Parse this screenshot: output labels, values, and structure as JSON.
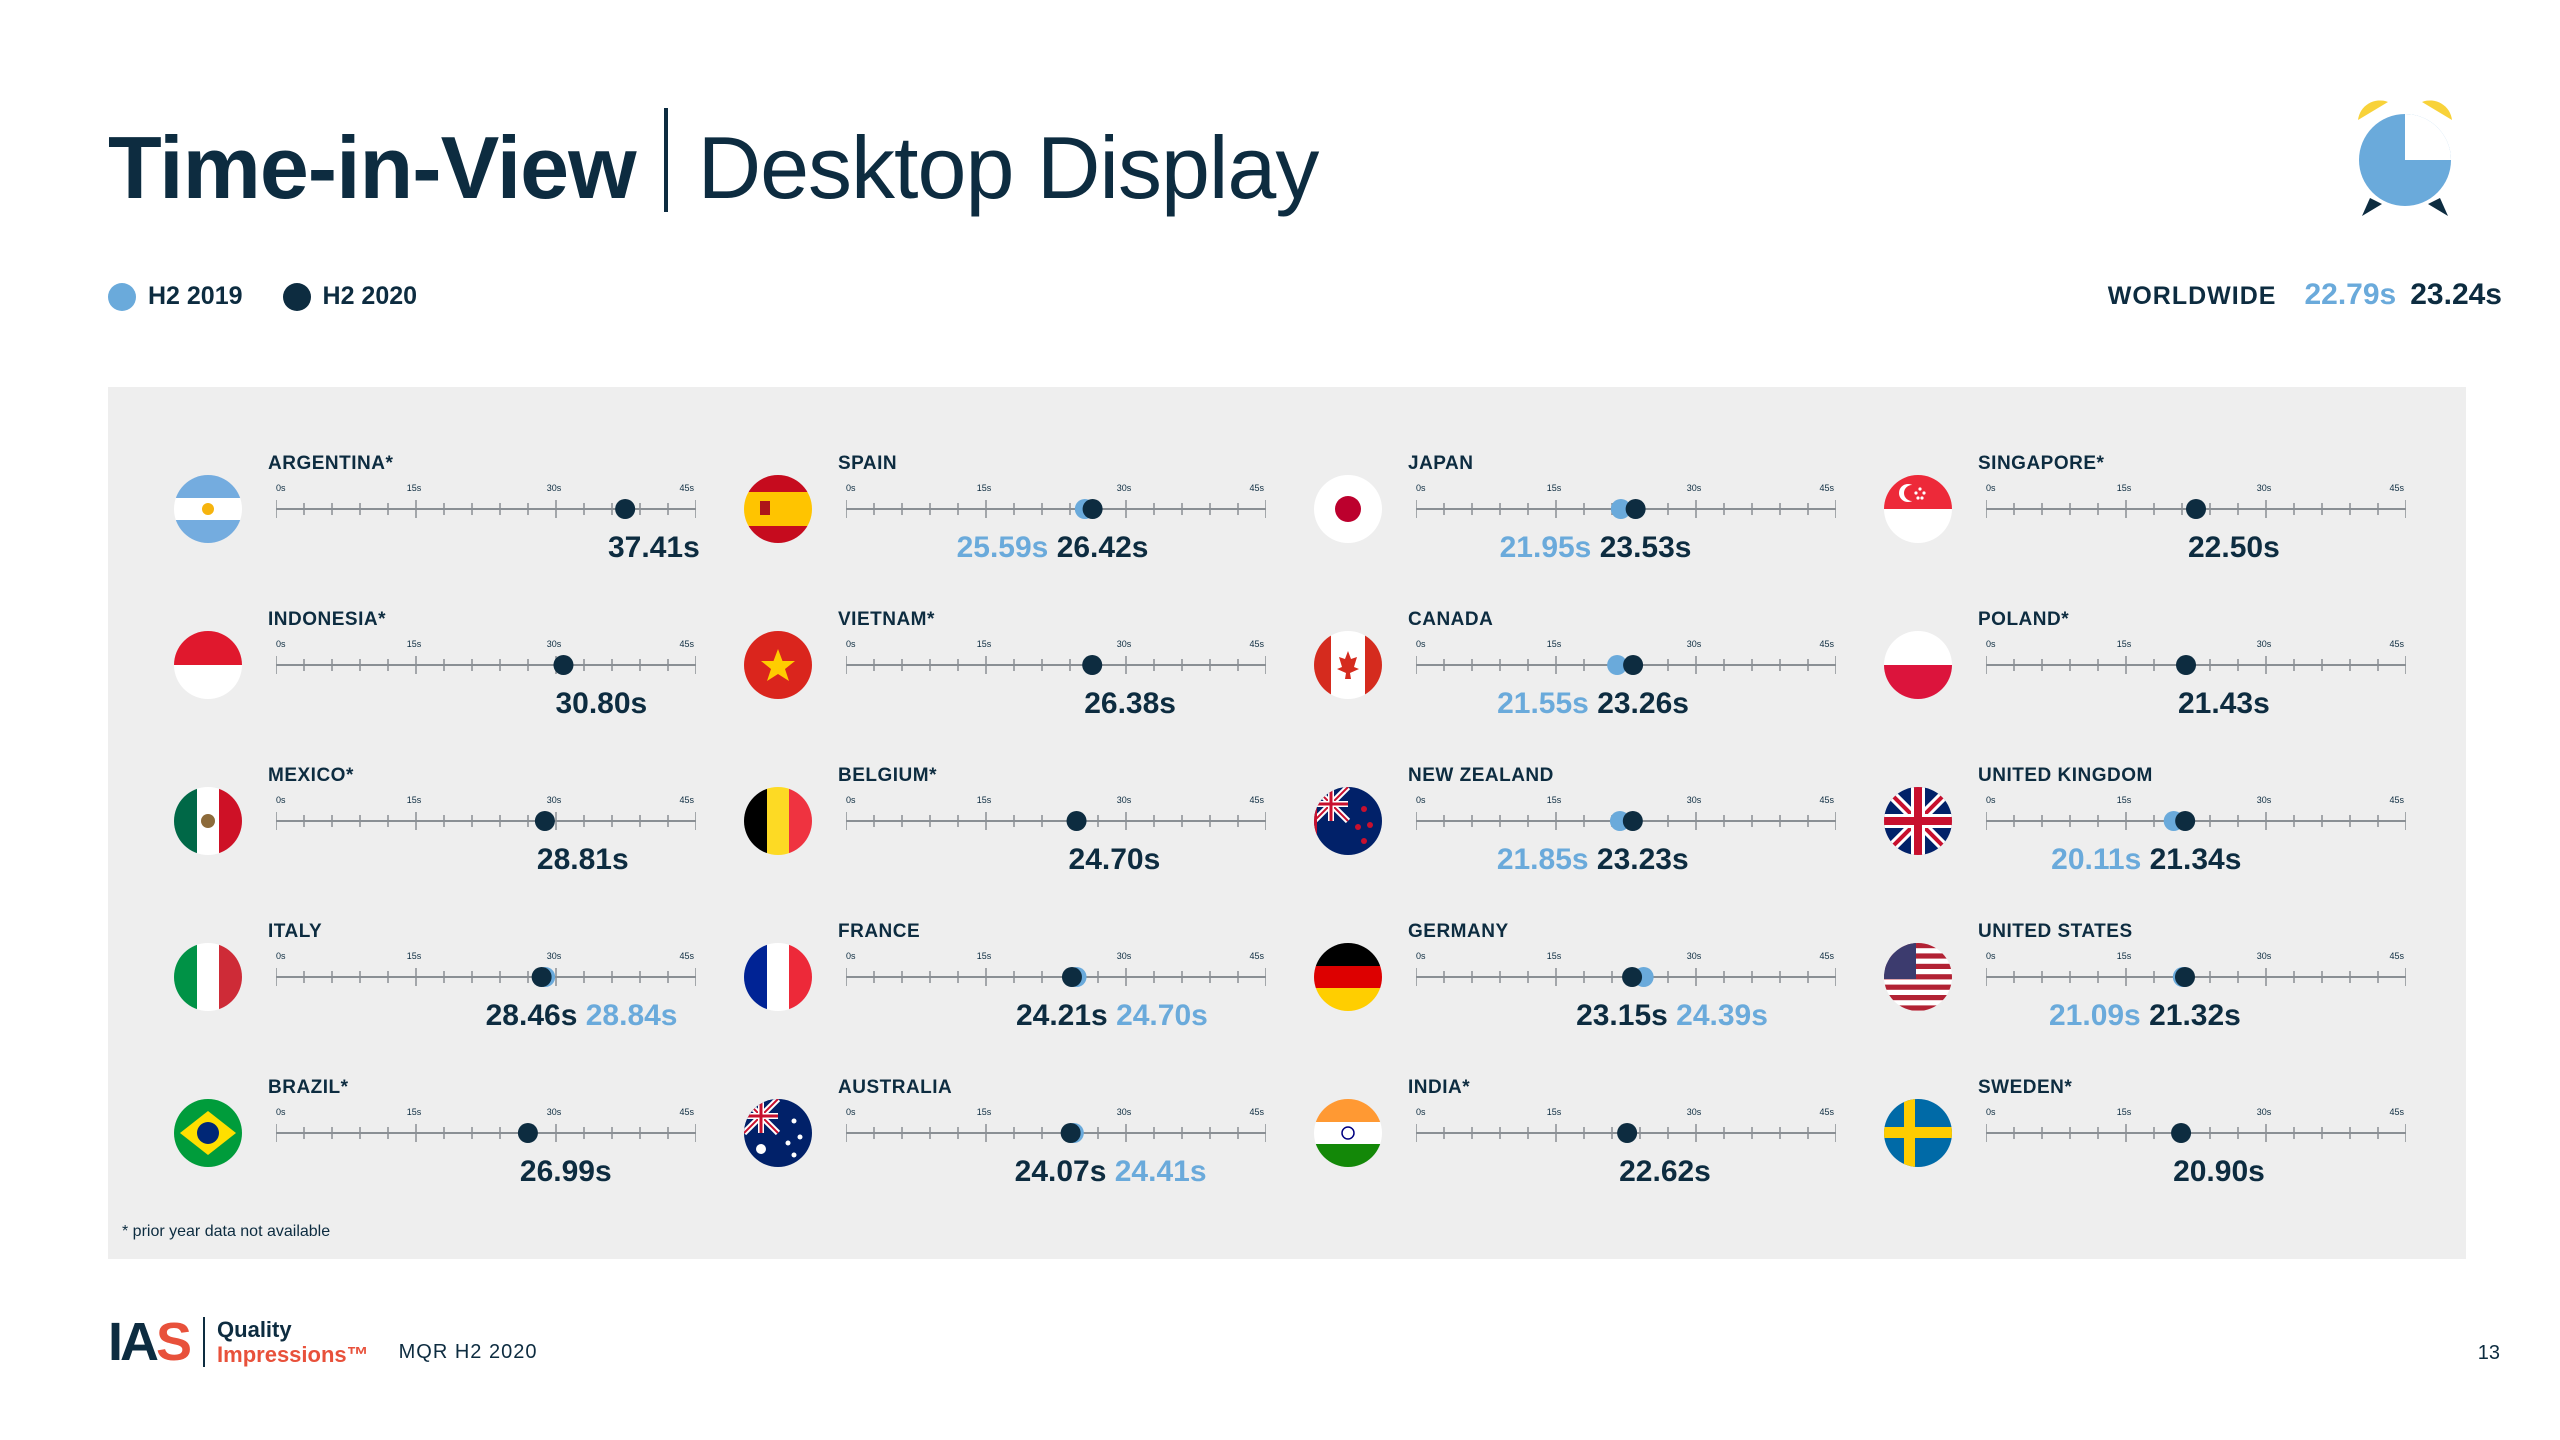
{
  "title": {
    "bold": "Time-in-View",
    "light": "Desktop Display"
  },
  "legend": [
    {
      "label": "H2 2019",
      "color": "#6aaadb"
    },
    {
      "label": "H2 2020",
      "color": "#0d2c40"
    }
  ],
  "worldwide": {
    "label": "WORLDWIDE",
    "h2_2019": "22.79s",
    "h2_2020": "23.24s"
  },
  "footnote": "* prior year data not available",
  "footer": {
    "logo": "IAS",
    "quality": "Quality",
    "impressions": "Impressions™",
    "report": "MQR H2 2020",
    "page": "13"
  },
  "colors": {
    "h2_2019": "#6aaadb",
    "h2_2020": "#0d2c40",
    "panel": "#eeeeee",
    "accent_red": "#e8513b",
    "clock_yellow": "#f8d23a"
  },
  "icons": [
    "alarm-clock-icon"
  ],
  "chart_data": {
    "type": "scatter",
    "title": "Time-in-View | Desktop Display",
    "unit": "s",
    "x_ticks": [
      "0s",
      "15s",
      "30s",
      "45s"
    ],
    "xlim": [
      0,
      45
    ],
    "series_names": [
      "H2 2019",
      "H2 2020"
    ],
    "countries": [
      {
        "name": "ARGENTINA*",
        "flag": "argentina",
        "h2_2019": null,
        "h2_2020": 37.41,
        "label_2019": "",
        "label_2020": "37.41s",
        "order": "19-20"
      },
      {
        "name": "INDONESIA*",
        "flag": "indonesia",
        "h2_2019": null,
        "h2_2020": 30.8,
        "label_2019": "",
        "label_2020": "30.80s",
        "order": "19-20"
      },
      {
        "name": "MEXICO*",
        "flag": "mexico",
        "h2_2019": null,
        "h2_2020": 28.81,
        "label_2019": "",
        "label_2020": "28.81s",
        "order": "19-20"
      },
      {
        "name": "ITALY",
        "flag": "italy",
        "h2_2019": 28.84,
        "h2_2020": 28.46,
        "label_2019": "28.84s",
        "label_2020": "28.46s",
        "order": "20-19"
      },
      {
        "name": "BRAZIL*",
        "flag": "brazil",
        "h2_2019": null,
        "h2_2020": 26.99,
        "label_2019": "",
        "label_2020": "26.99s",
        "order": "19-20"
      },
      {
        "name": "SPAIN",
        "flag": "spain",
        "h2_2019": 25.59,
        "h2_2020": 26.42,
        "label_2019": "25.59s",
        "label_2020": "26.42s",
        "order": "19-20"
      },
      {
        "name": "VIETNAM*",
        "flag": "vietnam",
        "h2_2019": null,
        "h2_2020": 26.38,
        "label_2019": "",
        "label_2020": "26.38s",
        "order": "19-20"
      },
      {
        "name": "BELGIUM*",
        "flag": "belgium",
        "h2_2019": null,
        "h2_2020": 24.7,
        "label_2019": "",
        "label_2020": "24.70s",
        "order": "19-20"
      },
      {
        "name": "FRANCE",
        "flag": "france",
        "h2_2019": 24.7,
        "h2_2020": 24.21,
        "label_2019": "24.70s",
        "label_2020": "24.21s",
        "order": "20-19"
      },
      {
        "name": "AUSTRALIA",
        "flag": "australia",
        "h2_2019": 24.41,
        "h2_2020": 24.07,
        "label_2019": "24.41s",
        "label_2020": "24.07s",
        "order": "20-19"
      },
      {
        "name": "JAPAN",
        "flag": "japan",
        "h2_2019": 21.95,
        "h2_2020": 23.53,
        "label_2019": "21.95s",
        "label_2020": "23.53s",
        "order": "19-20"
      },
      {
        "name": "CANADA",
        "flag": "canada",
        "h2_2019": 21.55,
        "h2_2020": 23.26,
        "label_2019": "21.55s",
        "label_2020": "23.26s",
        "order": "19-20"
      },
      {
        "name": "NEW ZEALAND",
        "flag": "newzealand",
        "h2_2019": 21.85,
        "h2_2020": 23.23,
        "label_2019": "21.85s",
        "label_2020": "23.23s",
        "order": "19-20"
      },
      {
        "name": "GERMANY",
        "flag": "germany",
        "h2_2019": 24.39,
        "h2_2020": 23.15,
        "label_2019": "24.39s",
        "label_2020": "23.15s",
        "order": "20-19"
      },
      {
        "name": "INDIA*",
        "flag": "india",
        "h2_2019": null,
        "h2_2020": 22.62,
        "label_2019": "",
        "label_2020": "22.62s",
        "order": "19-20"
      },
      {
        "name": "SINGAPORE*",
        "flag": "singapore",
        "h2_2019": null,
        "h2_2020": 22.5,
        "label_2019": "",
        "label_2020": "22.50s",
        "order": "19-20"
      },
      {
        "name": "POLAND*",
        "flag": "poland",
        "h2_2019": null,
        "h2_2020": 21.43,
        "label_2019": "",
        "label_2020": "21.43s",
        "order": "19-20"
      },
      {
        "name": "UNITED KINGDOM",
        "flag": "uk",
        "h2_2019": 20.11,
        "h2_2020": 21.34,
        "label_2019": "20.11s",
        "label_2020": "21.34s",
        "order": "19-20"
      },
      {
        "name": "UNITED STATES",
        "flag": "usa",
        "h2_2019": 21.09,
        "h2_2020": 21.32,
        "label_2019": "21.09s",
        "label_2020": "21.32s",
        "order": "19-20"
      },
      {
        "name": "SWEDEN*",
        "flag": "sweden",
        "h2_2019": null,
        "h2_2020": 20.9,
        "label_2019": "",
        "label_2020": "20.90s",
        "order": "19-20"
      }
    ]
  }
}
